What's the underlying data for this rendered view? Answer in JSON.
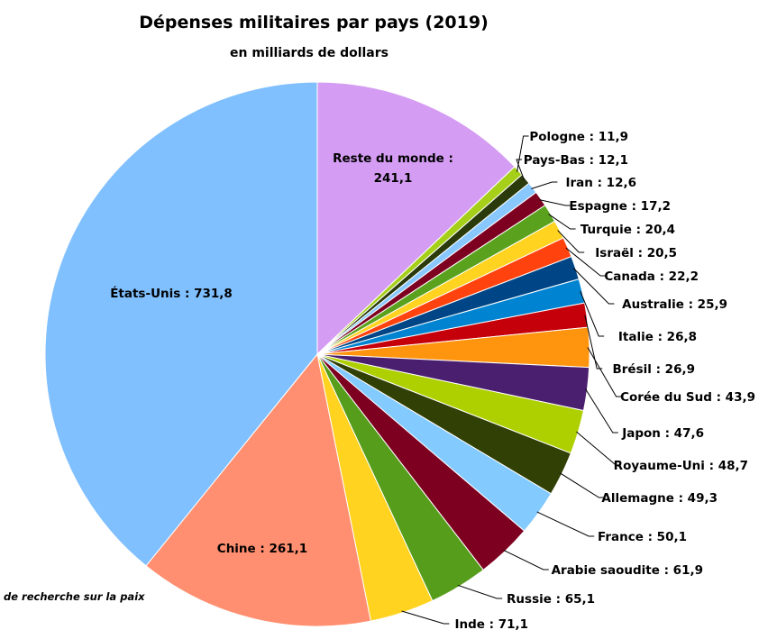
{
  "chart_data": {
    "type": "pie",
    "title": "Dépenses militaires par pays (2019)",
    "subtitle": "en milliards de dollars",
    "source": "de recherche sur la paix",
    "slices": [
      {
        "label": "Reste du monde : 241,1",
        "value": 241.1,
        "color": "#d49cf2"
      },
      {
        "label": "Pologne : 11,9",
        "value": 11.9,
        "color": "#a6cf1a"
      },
      {
        "label": "Pays-Bas : 12,1",
        "value": 12.1,
        "color": "#2b3a0a"
      },
      {
        "label": "Iran : 12,6",
        "value": 12.6,
        "color": "#88c8ff"
      },
      {
        "label": "Espagne : 17,2",
        "value": 17.2,
        "color": "#7e0020"
      },
      {
        "label": "Turquie : 20,4",
        "value": 20.4,
        "color": "#5aa21e"
      },
      {
        "label": "Israël : 20,5",
        "value": 20.5,
        "color": "#ffd31f"
      },
      {
        "label": "Canada : 22,2",
        "value": 22.2,
        "color": "#ff420e"
      },
      {
        "label": "Australie : 25,9",
        "value": 25.9,
        "color": "#004586"
      },
      {
        "label": "Italie : 26,8",
        "value": 26.8,
        "color": "#0084d1"
      },
      {
        "label": "Brésil : 26,9",
        "value": 26.9,
        "color": "#c5000b"
      },
      {
        "label": "Corée du Sud : 43,9",
        "value": 43.9,
        "color": "#ff950e"
      },
      {
        "label": "Japon : 47,6",
        "value": 47.6,
        "color": "#4b1f6f"
      },
      {
        "label": "Royaume-Uni : 48,7",
        "value": 48.7,
        "color": "#aecf00"
      },
      {
        "label": "Allemagne : 49,3",
        "value": 49.3,
        "color": "#314004"
      },
      {
        "label": "France : 50,1",
        "value": 50.1,
        "color": "#83caff"
      },
      {
        "label": "Arabie saoudite : 61,9",
        "value": 61.9,
        "color": "#7e0021"
      },
      {
        "label": "Russie : 65,1",
        "value": 65.1,
        "color": "#579d1c"
      },
      {
        "label": "Inde : 71,1",
        "value": 71.1,
        "color": "#ffd320"
      },
      {
        "label": "Chine : 261,1",
        "value": 261.1,
        "color": "#ff8f70"
      },
      {
        "label": "États-Unis : 731,8",
        "value": 731.8,
        "color": "#80c0ff"
      }
    ]
  }
}
